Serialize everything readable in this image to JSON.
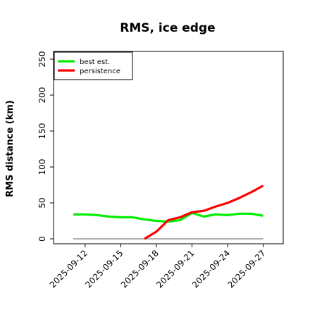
{
  "chart_data": {
    "type": "line",
    "title": "RMS, ice edge",
    "xlabel": "",
    "ylabel": "RMS distance (km)",
    "ylim": [
      0,
      260
    ],
    "yticks": [
      0,
      50,
      100,
      150,
      200,
      250
    ],
    "x_tick_labels": [
      "2025-09-12",
      "2025-09-15",
      "2025-09-18",
      "2025-09-21",
      "2025-09-24",
      "2025-09-27"
    ],
    "x_tick_dates": [
      "2025-09-12",
      "2025-09-15",
      "2025-09-18",
      "2025-09-21",
      "2025-09-24",
      "2025-09-27"
    ],
    "xlim_dates": [
      "2025-09-08",
      "2025-09-28"
    ],
    "grid": false,
    "legend_position": "top-left",
    "reference_line": {
      "y": 0,
      "x_start": "2025-09-11",
      "x_end": "2025-09-27",
      "color": "#808080"
    },
    "series": [
      {
        "name": "best est.",
        "color": "#00ee00",
        "x": [
          "2025-09-11",
          "2025-09-12",
          "2025-09-13",
          "2025-09-14",
          "2025-09-15",
          "2025-09-16",
          "2025-09-17",
          "2025-09-18",
          "2025-09-19",
          "2025-09-20",
          "2025-09-21",
          "2025-09-22",
          "2025-09-23",
          "2025-09-24",
          "2025-09-25",
          "2025-09-26",
          "2025-09-27"
        ],
        "y": [
          34,
          34,
          33,
          31,
          30,
          30,
          27,
          25,
          24,
          26,
          36,
          31,
          34,
          33,
          35,
          35,
          32
        ]
      },
      {
        "name": "persistence",
        "color": "#ff0000",
        "x": [
          "2025-09-17",
          "2025-09-18",
          "2025-09-19",
          "2025-09-20",
          "2025-09-21",
          "2025-09-22",
          "2025-09-23",
          "2025-09-24",
          "2025-09-25",
          "2025-09-26",
          "2025-09-27"
        ],
        "y": [
          0,
          10,
          26,
          30,
          37,
          39,
          45,
          50,
          57,
          65,
          74
        ]
      }
    ]
  }
}
